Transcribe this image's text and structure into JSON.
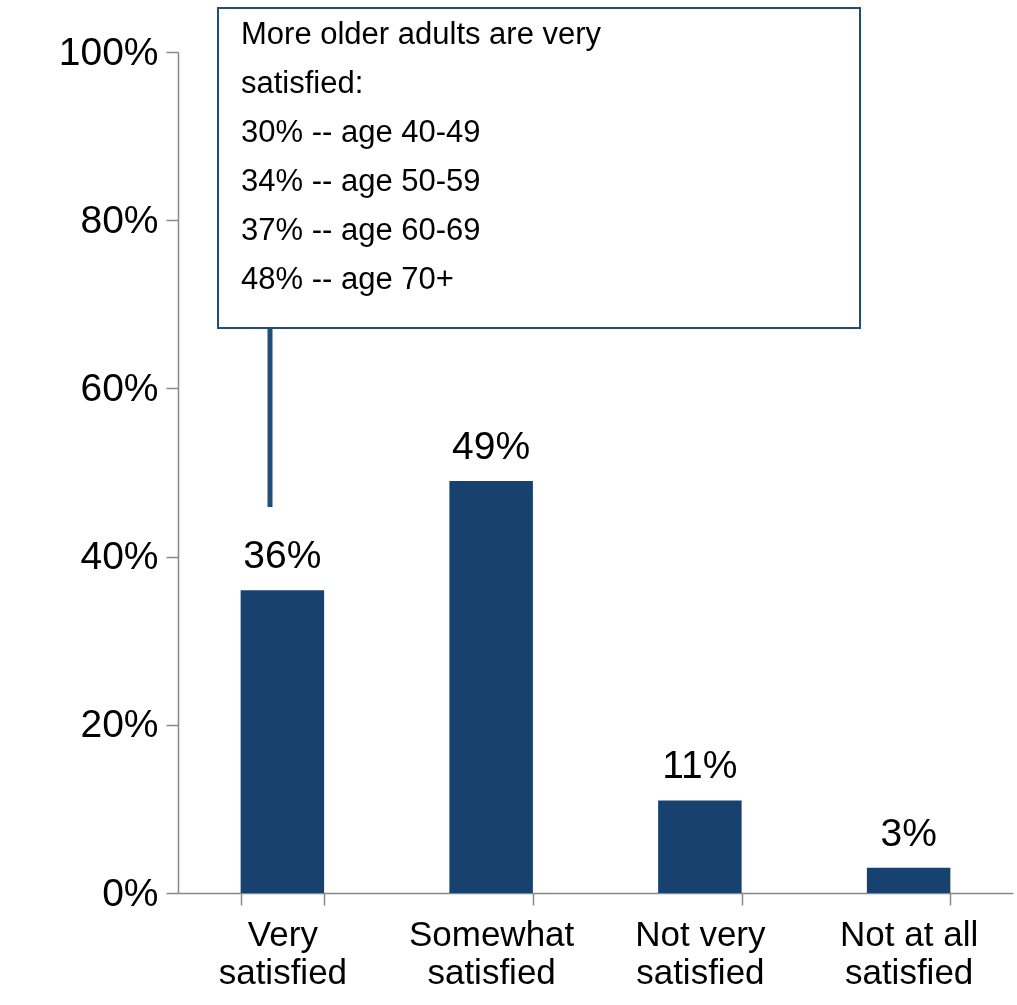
{
  "chart_data": {
    "type": "bar",
    "categories": [
      "Very satisfied",
      "Somewhat satisfied",
      "Not very satisfied",
      "Not at all satisfied"
    ],
    "values": [
      36,
      49,
      11,
      3
    ],
    "value_labels": [
      "36%",
      "49%",
      "11%",
      "3%"
    ],
    "color": "#17426f",
    "ylim": [
      0,
      100
    ],
    "yticks": [
      {
        "value": 0,
        "label": "0%"
      },
      {
        "value": 20,
        "label": "20%"
      },
      {
        "value": 40,
        "label": "40%"
      },
      {
        "value": 60,
        "label": "60%"
      },
      {
        "value": 80,
        "label": "80%"
      },
      {
        "value": 100,
        "label": "100%"
      }
    ],
    "annotations": [
      "More older adults are very satisfied:",
      "30% -- age 40-49",
      "34% -- age 50-59",
      "37% -- age 60-69",
      "48% -- age 70+"
    ]
  }
}
